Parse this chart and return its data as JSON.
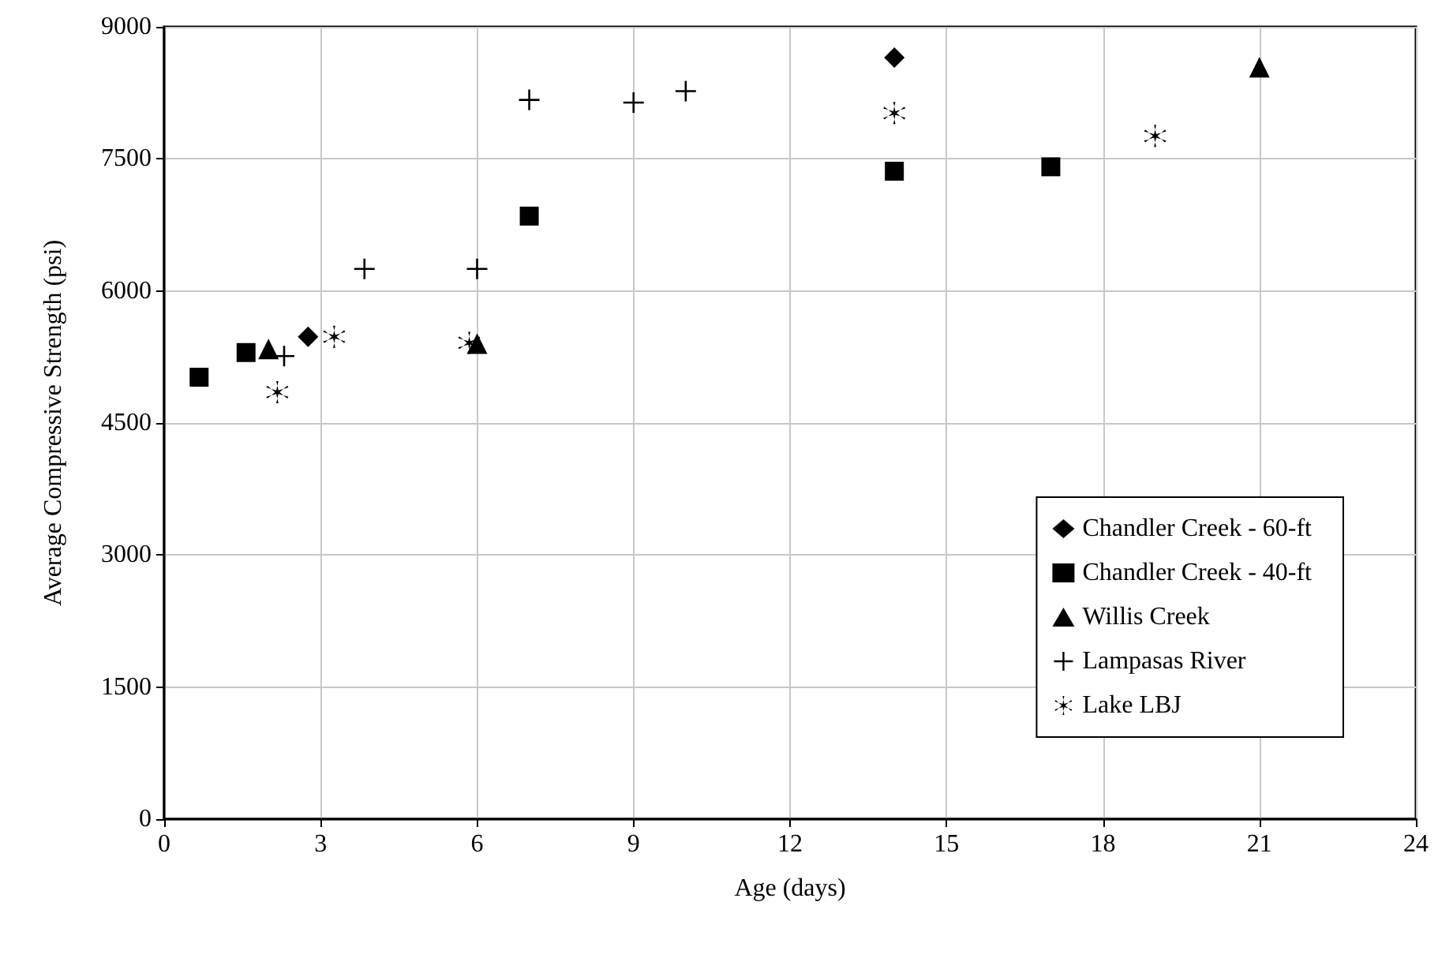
{
  "chart_data": {
    "type": "scatter",
    "xlabel": "Age (days)",
    "ylabel": "Average Compressive Strength (psi)",
    "xlim": [
      0,
      24
    ],
    "xticks": [
      0,
      3,
      6,
      9,
      12,
      15,
      18,
      21,
      24
    ],
    "ylim": [
      0,
      9000
    ],
    "yticks": [
      0,
      1500,
      3000,
      4500,
      6000,
      7500,
      9000
    ],
    "grid": true,
    "legend": "bottom right",
    "series": [
      {
        "name": "Chandler Creek - 60-ft",
        "color": "#000000",
        "marker": "diamond",
        "x": [
          2.76,
          14
        ],
        "values": [
          5480,
          8650
        ]
      },
      {
        "name": "Chandler Creek - 40-ft",
        "color": "#000000",
        "marker": "square",
        "x": [
          0.67,
          1.57,
          7,
          14,
          17
        ],
        "values": [
          5020,
          5300,
          6850,
          7360,
          7410
        ]
      },
      {
        "name": "Willis Creek",
        "color": "#000000",
        "marker": "triangle",
        "x": [
          2,
          6,
          21
        ],
        "values": [
          5340,
          5400,
          8540
        ]
      },
      {
        "name": "Lampasas River",
        "color": "#000000",
        "marker": "cross",
        "x": [
          2.3,
          3.84,
          6,
          7,
          9,
          10
        ],
        "values": [
          5260,
          6250,
          6250,
          8170,
          8140,
          8270
        ]
      },
      {
        "name": "Lake LBJ",
        "color": "#000000",
        "marker": "star",
        "x": [
          2.17,
          3.26,
          5.85,
          14,
          19
        ],
        "values": [
          4850,
          5480,
          5410,
          8020,
          7760
        ]
      }
    ]
  }
}
